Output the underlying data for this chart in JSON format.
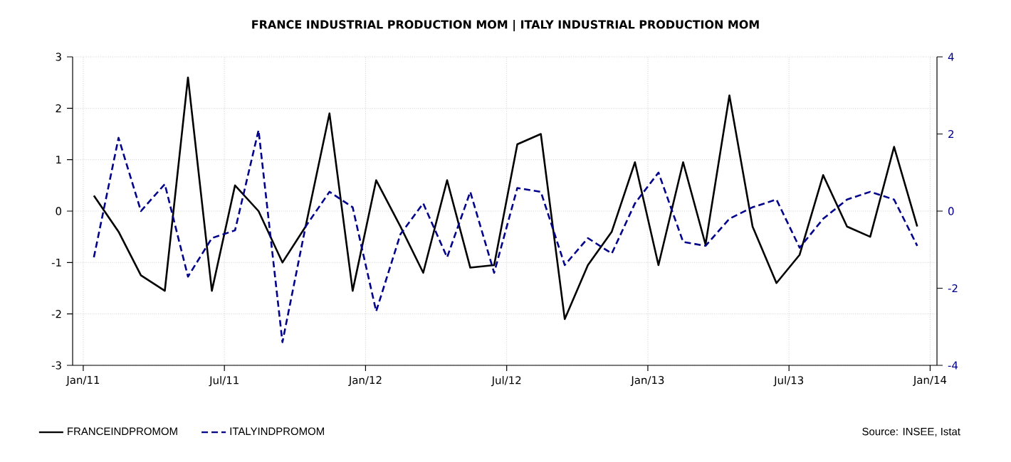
{
  "chart_data": {
    "type": "line",
    "title": "FRANCE INDUSTRIAL PRODUCTION MOM |  ITALY INDUSTRIAL PRODUCTION MOM",
    "x": [
      "2011-01-15",
      "2011-02-15",
      "2011-03-15",
      "2011-04-15",
      "2011-05-15",
      "2011-06-15",
      "2011-07-15",
      "2011-08-15",
      "2011-09-15",
      "2011-10-15",
      "2011-11-15",
      "2011-12-15",
      "2012-01-15",
      "2012-02-15",
      "2012-03-15",
      "2012-04-15",
      "2012-05-15",
      "2012-06-15",
      "2012-07-15",
      "2012-08-15",
      "2012-09-15",
      "2012-10-15",
      "2012-11-15",
      "2012-12-15",
      "2013-01-15",
      "2013-02-15",
      "2013-03-15",
      "2013-04-15",
      "2013-05-15",
      "2013-06-15",
      "2013-07-15",
      "2013-08-15",
      "2013-09-15",
      "2013-10-15",
      "2013-11-15",
      "2013-12-15"
    ],
    "series": [
      {
        "name": "FRANCEINDPROMOM",
        "color": "#000000",
        "line_style": "solid",
        "values": [
          0.3,
          -0.4,
          -1.25,
          -1.55,
          2.6,
          -1.55,
          0.5,
          0.0,
          -1.0,
          -0.3,
          1.9,
          -1.55,
          0.6,
          -0.3,
          -1.2,
          0.6,
          -1.1,
          -1.05,
          1.3,
          1.5,
          -2.1,
          -1.05,
          -0.4,
          0.95,
          -1.05,
          0.95,
          -0.65,
          2.25,
          -0.3,
          -1.4,
          -0.85,
          0.7,
          -0.3,
          -0.5,
          1.25,
          -0.3
        ]
      },
      {
        "name": "ITALYINDPROMOM",
        "color": "#00008b",
        "line_style": "dashed",
        "axis": "y2",
        "values": [
          -1.2,
          1.9,
          0.0,
          0.7,
          -1.7,
          -0.7,
          -0.5,
          2.1,
          -3.4,
          -0.4,
          0.5,
          0.1,
          -2.6,
          -0.6,
          0.2,
          -1.2,
          0.5,
          -1.6,
          0.6,
          0.5,
          -1.4,
          -0.7,
          -1.1,
          0.2,
          1.0,
          -0.8,
          -0.9,
          -0.2,
          0.1,
          0.3,
          -0.95,
          -0.2,
          0.3,
          0.5,
          0.3,
          -0.9
        ]
      }
    ],
    "xlim": [
      "2010-12-18",
      "2014-01-10"
    ],
    "xticks": [
      {
        "value": "2011-01",
        "label": "Jan/11"
      },
      {
        "value": "2011-07",
        "label": "Jul/11"
      },
      {
        "value": "2012-01",
        "label": "Jan/12"
      },
      {
        "value": "2012-07",
        "label": "Jul/12"
      },
      {
        "value": "2013-01",
        "label": "Jan/13"
      },
      {
        "value": "2013-07",
        "label": "Jul/13"
      },
      {
        "value": "2014-01",
        "label": "Jan/14"
      }
    ],
    "ylim": [
      -3,
      3
    ],
    "yticks": [
      -3,
      -2,
      -1,
      0,
      1,
      2,
      3
    ],
    "y2lim": [
      -4,
      4
    ],
    "y2ticks": [
      -4,
      -2,
      0,
      2,
      4
    ],
    "grid": true,
    "legend": "bottom",
    "annotations": [
      "Source: INSEE, Istat"
    ]
  }
}
